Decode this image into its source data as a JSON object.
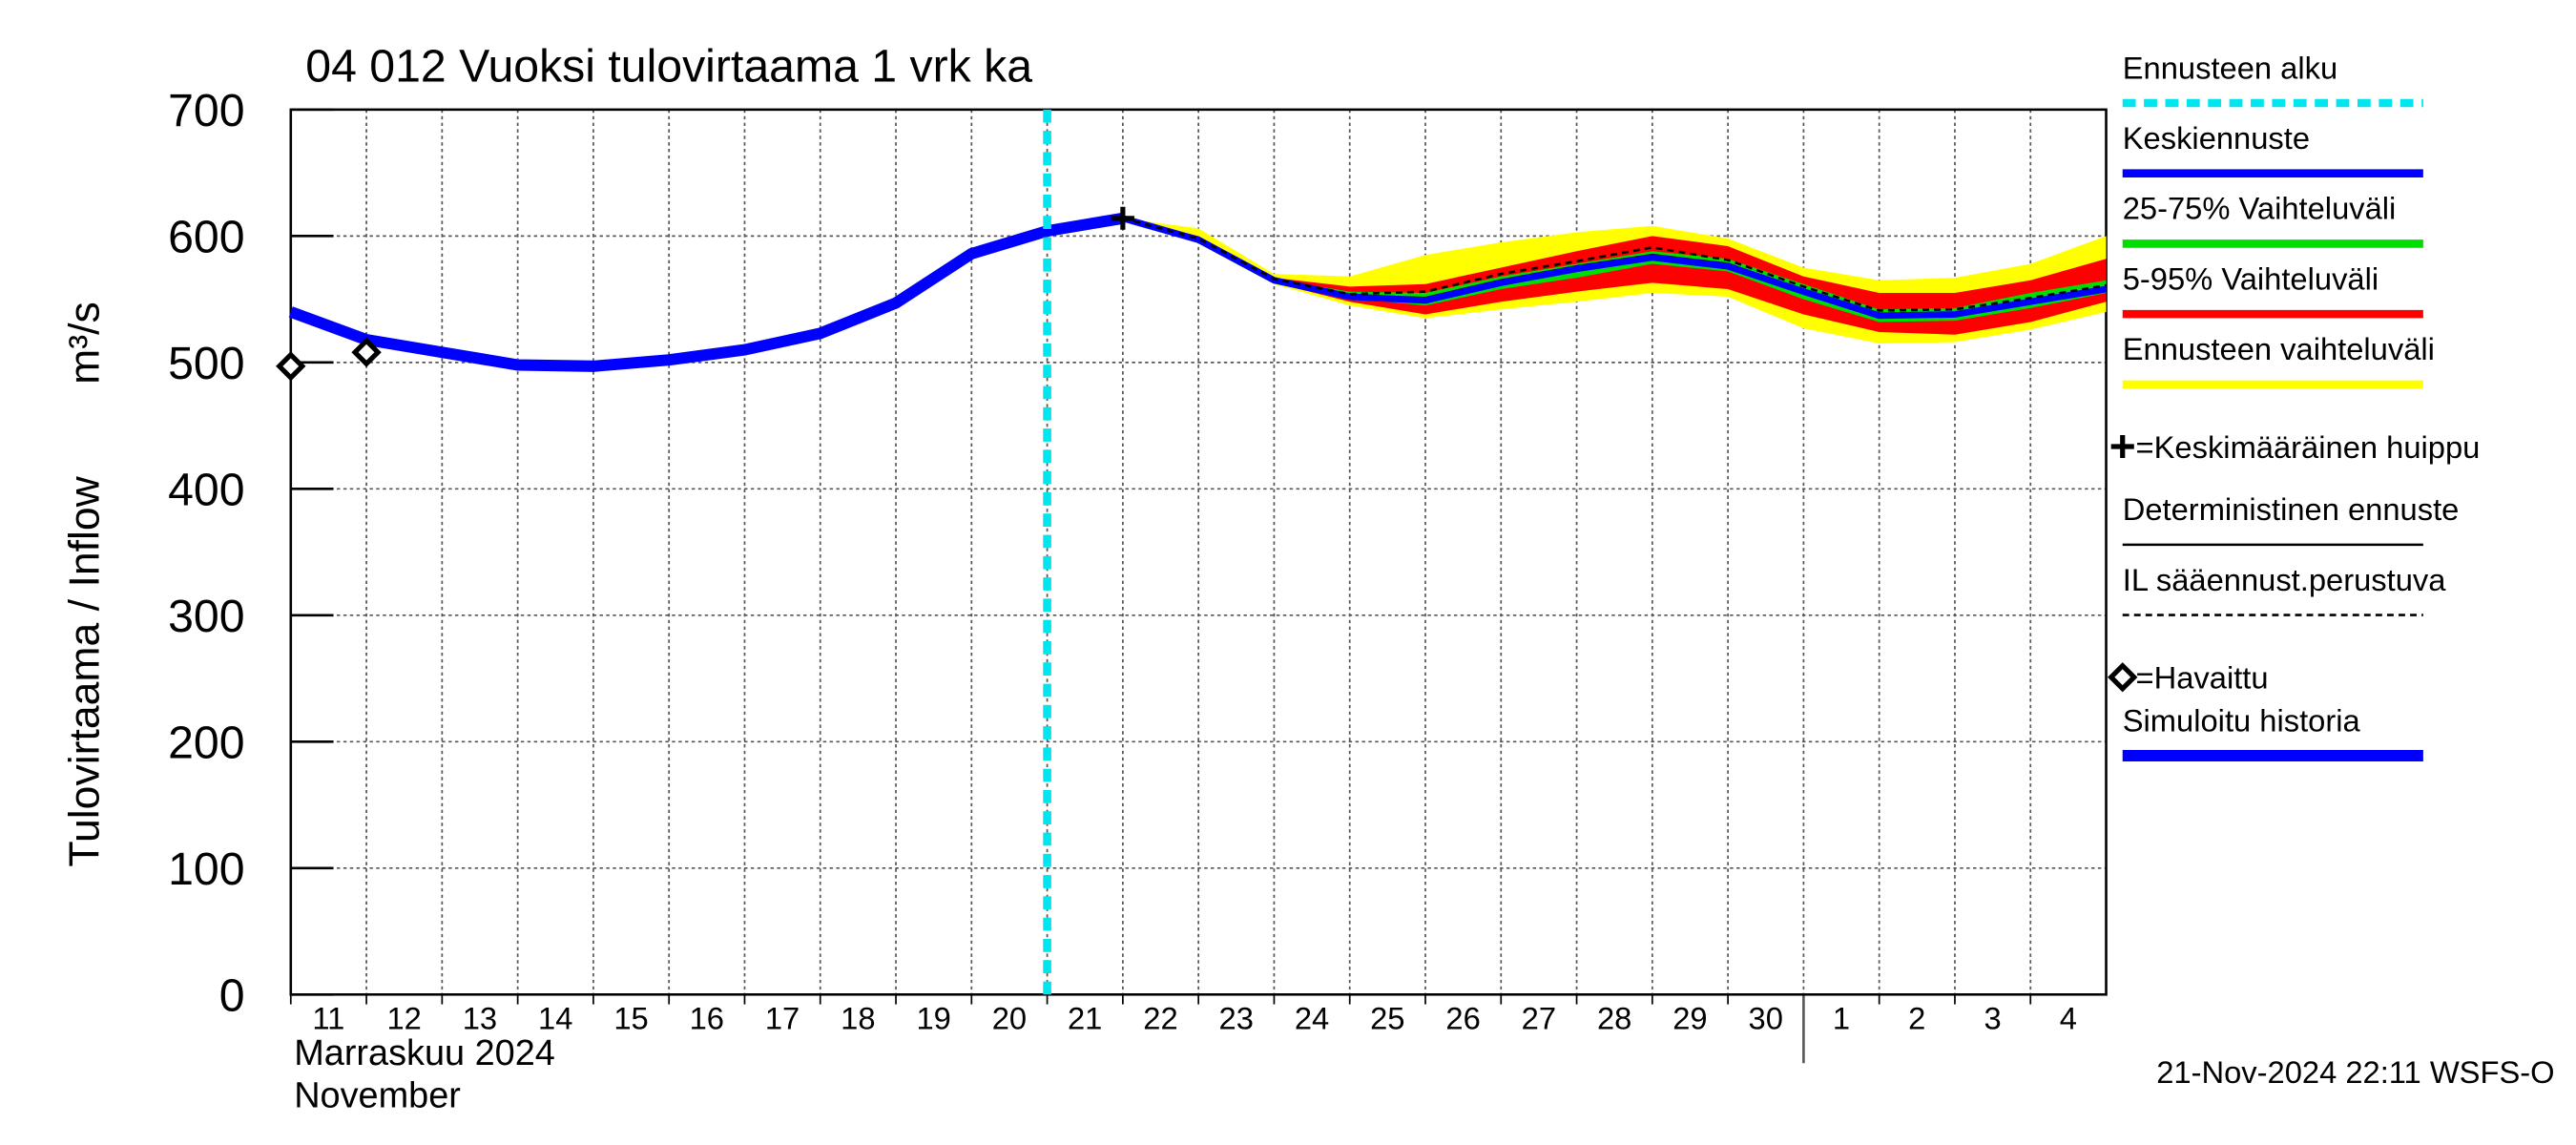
{
  "chart_data": {
    "type": "line",
    "title": "04 012 Vuoksi tulovirtaama 1 vrk ka",
    "y_label": "Tulovirtaama / Inflow",
    "y_unit": "m³/s",
    "month_label": "Marraskuu 2024",
    "month_label_en": "November",
    "timestamp": "21-Nov-2024 22:11 WSFS-O",
    "ylim": [
      0,
      700
    ],
    "yticks": [
      0,
      100,
      200,
      300,
      400,
      500,
      600,
      700
    ],
    "xlim": [
      "2024-11-11",
      "2024-12-05"
    ],
    "xticks": [
      {
        "value": "2024-11-11",
        "label": "11"
      },
      {
        "value": "2024-11-12",
        "label": "12"
      },
      {
        "value": "2024-11-13",
        "label": "13"
      },
      {
        "value": "2024-11-14",
        "label": "14"
      },
      {
        "value": "2024-11-15",
        "label": "15"
      },
      {
        "value": "2024-11-16",
        "label": "16"
      },
      {
        "value": "2024-11-17",
        "label": "17"
      },
      {
        "value": "2024-11-18",
        "label": "18"
      },
      {
        "value": "2024-11-19",
        "label": "19"
      },
      {
        "value": "2024-11-20",
        "label": "20"
      },
      {
        "value": "2024-11-21",
        "label": "21"
      },
      {
        "value": "2024-11-22",
        "label": "22"
      },
      {
        "value": "2024-11-23",
        "label": "23"
      },
      {
        "value": "2024-11-24",
        "label": "24"
      },
      {
        "value": "2024-11-25",
        "label": "25"
      },
      {
        "value": "2024-11-26",
        "label": "26"
      },
      {
        "value": "2024-11-27",
        "label": "27"
      },
      {
        "value": "2024-11-28",
        "label": "28"
      },
      {
        "value": "2024-11-29",
        "label": "29"
      },
      {
        "value": "2024-11-30",
        "label": "30"
      },
      {
        "value": "2024-12-01",
        "label": "1"
      },
      {
        "value": "2024-12-02",
        "label": "2"
      },
      {
        "value": "2024-12-03",
        "label": "3"
      },
      {
        "value": "2024-12-04",
        "label": "4"
      }
    ],
    "month_separator": "2024-12-01",
    "grid": true,
    "series": [
      {
        "name": "Ennusteen alku",
        "kind": "vline",
        "color": "#00e5ee",
        "x": "2024-11-21"
      },
      {
        "name": "Keskiennuste",
        "kind": "line",
        "color": "#0000ff",
        "x": [
          "2024-11-22",
          "2024-11-23",
          "2024-11-24",
          "2024-11-25",
          "2024-11-26",
          "2024-11-27",
          "2024-11-28",
          "2024-11-29",
          "2024-11-30",
          "2024-12-01",
          "2024-12-02",
          "2024-12-03",
          "2024-12-04",
          "2024-12-05"
        ],
        "values": [
          614,
          597,
          565,
          552,
          549,
          563,
          574,
          583,
          576,
          556,
          537,
          538,
          548,
          558
        ]
      },
      {
        "name": "25-75% Vaihteluväli",
        "kind": "band",
        "color": "#00dd00",
        "x": [
          "2024-11-22",
          "2024-11-23",
          "2024-11-24",
          "2024-11-25",
          "2024-11-26",
          "2024-11-27",
          "2024-11-28",
          "2024-11-29",
          "2024-11-30",
          "2024-12-01",
          "2024-12-02",
          "2024-12-03",
          "2024-12-04",
          "2024-12-05"
        ],
        "lower": [
          614,
          596,
          564,
          551,
          545,
          558,
          567,
          578,
          572,
          550,
          532,
          533,
          543,
          555
        ],
        "upper": [
          614,
          598,
          566,
          556,
          555,
          568,
          578,
          588,
          582,
          562,
          542,
          543,
          555,
          565
        ]
      },
      {
        "name": "5-95% Vaihteluväli",
        "kind": "band",
        "color": "#ff0000",
        "x": [
          "2024-11-22",
          "2024-11-23",
          "2024-11-24",
          "2024-11-25",
          "2024-11-26",
          "2024-11-27",
          "2024-11-28",
          "2024-11-29",
          "2024-11-30",
          "2024-12-01",
          "2024-12-02",
          "2024-12-03",
          "2024-12-04",
          "2024-12-05"
        ],
        "lower": [
          614,
          595,
          563,
          548,
          538,
          548,
          556,
          563,
          558,
          538,
          524,
          522,
          532,
          548
        ],
        "upper": [
          614,
          600,
          567,
          560,
          562,
          575,
          588,
          600,
          592,
          568,
          555,
          555,
          565,
          582
        ]
      },
      {
        "name": "Ennusteen vaihteluväli",
        "kind": "band",
        "color": "#ffff00",
        "x": [
          "2024-11-22",
          "2024-11-23",
          "2024-11-24",
          "2024-11-25",
          "2024-11-26",
          "2024-11-27",
          "2024-11-28",
          "2024-11-29",
          "2024-11-30",
          "2024-12-01",
          "2024-12-02",
          "2024-12-03",
          "2024-12-04",
          "2024-12-05"
        ],
        "lower": [
          614,
          594,
          562,
          545,
          535,
          542,
          548,
          555,
          552,
          527,
          515,
          516,
          526,
          540
        ],
        "upper": [
          614,
          606,
          570,
          568,
          585,
          595,
          603,
          608,
          598,
          575,
          565,
          567,
          578,
          600
        ]
      },
      {
        "name": "=Keskimääräinen huippu",
        "kind": "peak",
        "color": "#000000",
        "x": [
          "2024-11-22"
        ],
        "values": [
          614
        ]
      },
      {
        "name": "Deterministinen ennuste",
        "kind": "line",
        "color": "#000000",
        "x": [
          "2024-11-22",
          "2024-11-23",
          "2024-11-24",
          "2024-11-25",
          "2024-11-26",
          "2024-11-27",
          "2024-11-28",
          "2024-11-29",
          "2024-11-30",
          "2024-12-01",
          "2024-12-02",
          "2024-12-03",
          "2024-12-04",
          "2024-12-05"
        ],
        "values": [
          614,
          597,
          565,
          553,
          551,
          565,
          576,
          585,
          578,
          557,
          538,
          539,
          549,
          559
        ]
      },
      {
        "name": "IL sääennust.perustuva",
        "kind": "dashed",
        "color": "#000000",
        "x": [
          "2024-11-22",
          "2024-11-23",
          "2024-11-24",
          "2024-11-25",
          "2024-11-26",
          "2024-11-27",
          "2024-11-28",
          "2024-11-29",
          "2024-11-30",
          "2024-12-01",
          "2024-12-02",
          "2024-12-03",
          "2024-12-04",
          "2024-12-05"
        ],
        "values": [
          614,
          598,
          566,
          554,
          556,
          570,
          580,
          591,
          581,
          560,
          541,
          542,
          551,
          561
        ]
      },
      {
        "name": "=Havaittu",
        "kind": "observed",
        "color": "#000000",
        "x": [
          "2024-11-11",
          "2024-11-12"
        ],
        "values": [
          497,
          508
        ]
      },
      {
        "name": "Simuloitu historia",
        "kind": "line",
        "color": "#0000ff",
        "x": [
          "2024-11-11",
          "2024-11-12",
          "2024-11-13",
          "2024-11-14",
          "2024-11-15",
          "2024-11-16",
          "2024-11-17",
          "2024-11-18",
          "2024-11-19",
          "2024-11-20",
          "2024-11-21",
          "2024-11-22"
        ],
        "values": [
          540,
          518,
          508,
          498,
          497,
          502,
          510,
          523,
          547,
          586,
          604,
          614
        ]
      }
    ]
  }
}
